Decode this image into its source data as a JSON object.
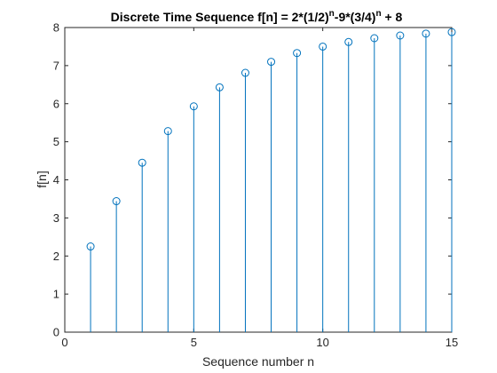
{
  "chart_data": {
    "type": "stem",
    "title": {
      "prefix": "Discrete Time Sequence f[n] = 2*(1/2)",
      "sup1": "n",
      "middle": "-9*(3/4)",
      "sup2": "n",
      "suffix": " + 8"
    },
    "xlabel": "Sequence number n",
    "ylabel": "f[n]",
    "xlim": [
      0,
      15
    ],
    "ylim": [
      0,
      8
    ],
    "xticks": [
      "0",
      "5",
      "10",
      "15"
    ],
    "yticks": [
      "0",
      "1",
      "2",
      "3",
      "4",
      "5",
      "6",
      "7",
      "8"
    ],
    "grid": false,
    "marker": "circle-open",
    "series_color": "#0072BD",
    "x": [
      1,
      2,
      3,
      4,
      5,
      6,
      7,
      8,
      9,
      10,
      11,
      12,
      13,
      14,
      15
    ],
    "y": [
      2.25,
      3.44,
      4.45,
      5.28,
      5.93,
      6.43,
      6.81,
      7.1,
      7.33,
      7.5,
      7.62,
      7.72,
      7.79,
      7.84,
      7.88
    ]
  }
}
